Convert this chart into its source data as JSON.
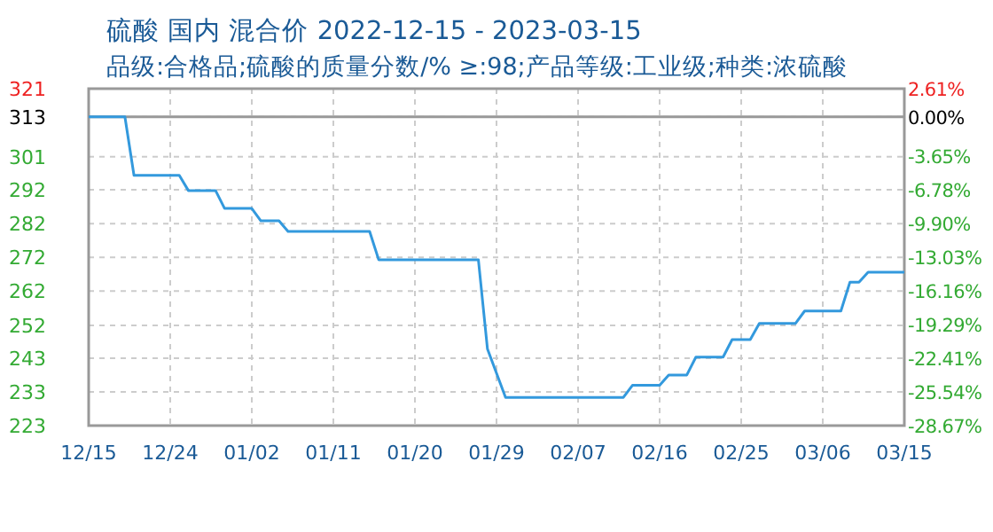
{
  "chart_data": {
    "type": "line",
    "title": "硫酸 国内 混合价 2022-12-15 - 2023-03-15",
    "subtitle": "品级:合格品;硫酸的质量分数/%  ≥:98;产品等级:工业级;种类:浓硫酸",
    "x": [
      "2022-12-15",
      "2022-12-19",
      "2022-12-20",
      "2022-12-25",
      "2022-12-26",
      "2022-12-29",
      "2022-12-30",
      "2023-01-02",
      "2023-01-03",
      "2023-01-05",
      "2023-01-06",
      "2023-01-15",
      "2023-01-16",
      "2023-01-27",
      "2023-01-28",
      "2023-01-30",
      "2023-02-12",
      "2023-02-13",
      "2023-02-16",
      "2023-02-17",
      "2023-02-19",
      "2023-02-20",
      "2023-02-23",
      "2023-02-24",
      "2023-02-26",
      "2023-02-27",
      "2023-03-03",
      "2023-03-04",
      "2023-03-08",
      "2023-03-09",
      "2023-03-10",
      "2023-03-11",
      "2023-03-15"
    ],
    "series": [
      {
        "color": "#3399dd",
        "values": [
          313,
          313,
          296,
          296,
          291.6,
          291.6,
          286.4,
          286.4,
          282.8,
          282.8,
          279.7,
          279.7,
          271.5,
          271.5,
          245.6,
          231.5,
          231.5,
          235,
          235,
          238,
          238,
          243.2,
          243.2,
          248.3,
          248.3,
          253,
          253,
          256.6,
          256.6,
          265,
          265,
          267.9,
          267.9
        ]
      }
    ],
    "xlim": [
      "2022-12-15",
      "2023-03-15"
    ],
    "xticks": [
      {
        "value": "2022-12-15",
        "label": "12/15"
      },
      {
        "value": "2022-12-24",
        "label": "12/24"
      },
      {
        "value": "2023-01-02",
        "label": "01/02"
      },
      {
        "value": "2023-01-11",
        "label": "01/11"
      },
      {
        "value": "2023-01-20",
        "label": "01/20"
      },
      {
        "value": "2023-01-29",
        "label": "01/29"
      },
      {
        "value": "2023-02-07",
        "label": "02/07"
      },
      {
        "value": "2023-02-16",
        "label": "02/16"
      },
      {
        "value": "2023-02-25",
        "label": "02/25"
      },
      {
        "value": "2023-03-06",
        "label": "03/06"
      },
      {
        "value": "2023-03-15",
        "label": "03/15"
      }
    ],
    "ylim": [
      223.3,
      321.2
    ],
    "yticks": [
      {
        "value": 321.2,
        "label": "321"
      },
      313,
      {
        "value": 301.4,
        "label": "301"
      },
      {
        "value": 291.8,
        "label": "292"
      },
      {
        "value": 282,
        "label": "282"
      },
      {
        "value": 272.2,
        "label": "272"
      },
      {
        "value": 262.4,
        "label": "262"
      },
      {
        "value": 252.4,
        "label": "252"
      },
      {
        "value": 242.9,
        "label": "243"
      },
      {
        "value": 233.1,
        "label": "233"
      },
      {
        "value": 223.3,
        "label": "223"
      }
    ],
    "y2lim": [
      -28.67,
      2.61
    ],
    "y2ticks": [
      {
        "value": 2.61,
        "label": "2.61%"
      },
      {
        "value": 0,
        "label": "0.00%"
      },
      {
        "value": -3.65,
        "label": "-3.65%"
      },
      {
        "value": -6.78,
        "label": "-6.78%"
      },
      {
        "value": -9.9,
        "label": "-9.90%"
      },
      {
        "value": -13.03,
        "label": "-13.03%"
      },
      {
        "value": -16.16,
        "label": "-16.16%"
      },
      {
        "value": -19.29,
        "label": "-19.29%"
      },
      {
        "value": -22.41,
        "label": "-22.41%"
      },
      {
        "value": -25.54,
        "label": "-25.54%"
      },
      {
        "value": -28.67,
        "label": "-28.67%"
      }
    ],
    "ref_lines": [
      {
        "axis": "y",
        "value": 313,
        "color": "#999999",
        "line_style": "solid"
      }
    ],
    "grid": true,
    "marker": "none",
    "line_style": "solid"
  }
}
